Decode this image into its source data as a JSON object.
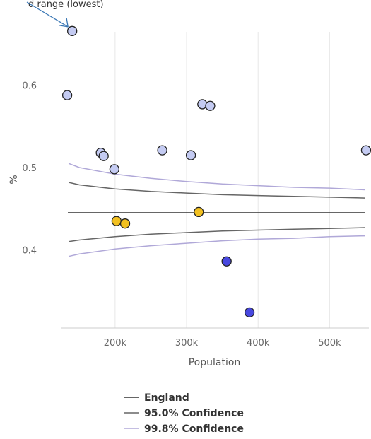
{
  "caption_partial": "d range (lowest)",
  "chart_data": {
    "type": "scatter",
    "xlabel": "Population",
    "ylabel": "%",
    "xlim": [
      125000,
      555000
    ],
    "ylim": [
      0.305,
      0.665
    ],
    "x_ticks": [
      200000,
      300000,
      400000,
      500000
    ],
    "x_tick_labels": [
      "200k",
      "300k",
      "400k",
      "500k"
    ],
    "y_ticks": [
      0.4,
      0.5,
      0.6
    ],
    "y_tick_labels": [
      "0.4",
      "0.5",
      "0.6"
    ],
    "grid": "vertical",
    "legend_position": "bottom",
    "reference_line": {
      "name": "England",
      "value": 0.445,
      "color": "#333333"
    },
    "funnels": [
      {
        "name": "95.0% Confidence",
        "color": "#666666",
        "x": [
          135000,
          150000,
          200000,
          250000,
          300000,
          350000,
          400000,
          450000,
          500000,
          550000
        ],
        "upper": [
          0.482,
          0.479,
          0.474,
          0.471,
          0.469,
          0.467,
          0.466,
          0.465,
          0.464,
          0.463
        ],
        "lower": [
          0.41,
          0.412,
          0.416,
          0.419,
          0.421,
          0.423,
          0.424,
          0.425,
          0.426,
          0.427
        ]
      },
      {
        "name": "99.8% Confidence",
        "color": "#b0a8d8",
        "x": [
          135000,
          150000,
          200000,
          250000,
          300000,
          350000,
          400000,
          450000,
          500000,
          550000
        ],
        "upper": [
          0.505,
          0.5,
          0.492,
          0.487,
          0.483,
          0.48,
          0.478,
          0.476,
          0.475,
          0.473
        ],
        "lower": [
          0.392,
          0.395,
          0.401,
          0.405,
          0.408,
          0.411,
          0.413,
          0.414,
          0.416,
          0.417
        ]
      }
    ],
    "points": [
      {
        "x": 140000,
        "y": 0.666,
        "color": "#c4cbf2"
      },
      {
        "x": 133000,
        "y": 0.588,
        "color": "#c4cbf2"
      },
      {
        "x": 180000,
        "y": 0.518,
        "color": "#c4cbf2"
      },
      {
        "x": 184000,
        "y": 0.514,
        "color": "#c4cbf2"
      },
      {
        "x": 199000,
        "y": 0.498,
        "color": "#c4cbf2"
      },
      {
        "x": 266000,
        "y": 0.521,
        "color": "#c4cbf2"
      },
      {
        "x": 306000,
        "y": 0.515,
        "color": "#c4cbf2"
      },
      {
        "x": 322000,
        "y": 0.577,
        "color": "#c4cbf2"
      },
      {
        "x": 333000,
        "y": 0.575,
        "color": "#c4cbf2"
      },
      {
        "x": 551000,
        "y": 0.521,
        "color": "#c4cbf2"
      },
      {
        "x": 202000,
        "y": 0.435,
        "color": "#f2c020"
      },
      {
        "x": 214000,
        "y": 0.432,
        "color": "#f2c020"
      },
      {
        "x": 317000,
        "y": 0.446,
        "color": "#f2c020"
      },
      {
        "x": 356000,
        "y": 0.386,
        "color": "#4848e0"
      },
      {
        "x": 388000,
        "y": 0.324,
        "color": "#4848e0"
      }
    ],
    "legend": [
      {
        "label": "England",
        "color": "#333333"
      },
      {
        "label": "95.0% Confidence",
        "color": "#666666"
      },
      {
        "label": "99.8% Confidence",
        "color": "#b0a8d8"
      }
    ],
    "annotation_arrow": {
      "color": "#3b78b5",
      "target_index": 0
    }
  }
}
